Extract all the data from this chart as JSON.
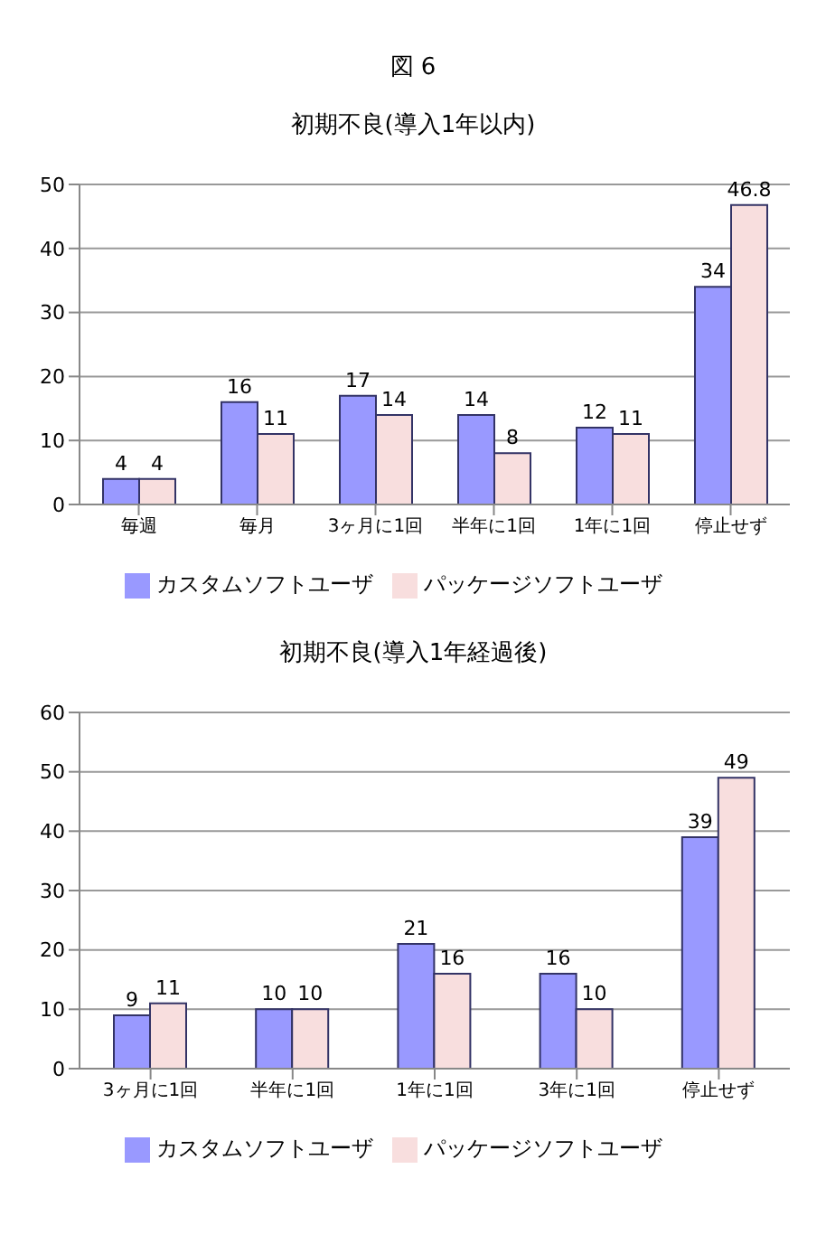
{
  "chart_data": [
    {
      "type": "bar",
      "annotations": [
        "図 6"
      ],
      "title": "初期不良(導入1年以内)",
      "categories": [
        "毎週",
        "毎月",
        "3ヶ月に1回",
        "半年に1回",
        "1年に1回",
        "停止せず"
      ],
      "series": [
        {
          "name": "カスタムソフトユーザ",
          "color": "#9999ff",
          "values": [
            4,
            16,
            17,
            14,
            12,
            34
          ]
        },
        {
          "name": "パッケージソフトユーザ",
          "color": "#f8dede",
          "values": [
            4,
            11,
            14,
            8,
            11,
            46.8
          ]
        }
      ],
      "ylim": [
        0,
        50
      ],
      "yticks": [
        0,
        10,
        20,
        30,
        40,
        50
      ],
      "grid": "y",
      "legend": "bottom",
      "data_labels": true
    },
    {
      "type": "bar",
      "title": "初期不良(導入1年経過後)",
      "categories": [
        "3ヶ月に1回",
        "半年に1回",
        "1年に1回",
        "3年に1回",
        "停止せず"
      ],
      "series": [
        {
          "name": "カスタムソフトユーザ",
          "color": "#9999ff",
          "values": [
            9,
            10,
            21,
            16,
            39
          ]
        },
        {
          "name": "パッケージソフトユーザ",
          "color": "#f8dede",
          "values": [
            11,
            10,
            16,
            10,
            49
          ]
        }
      ],
      "ylim": [
        0,
        60
      ],
      "yticks": [
        0,
        10,
        20,
        30,
        40,
        50,
        60
      ],
      "grid": "y",
      "legend": "bottom",
      "data_labels": true
    }
  ]
}
